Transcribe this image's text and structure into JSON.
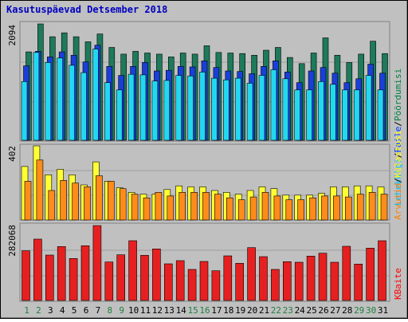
{
  "chart_data": [
    {
      "type": "bar",
      "title": "Kasutuspäevad Detsember 2018",
      "ytick": "2094",
      "ylim": [
        0,
        2094
      ],
      "legend": [
        "Pöördumisi",
        "Faile",
        "Lehekülgi"
      ],
      "categories": [
        "1",
        "2",
        "3",
        "4",
        "5",
        "6",
        "7",
        "8",
        "9",
        "10",
        "11",
        "12",
        "13",
        "14",
        "15",
        "16",
        "17",
        "18",
        "19",
        "20",
        "21",
        "22",
        "23",
        "24",
        "25",
        "26",
        "27",
        "28",
        "29",
        "30",
        "31"
      ],
      "series": [
        {
          "name": "Pöördumisi",
          "values": [
            1580,
            2080,
            1850,
            1920,
            1850,
            1760,
            1900,
            1660,
            1540,
            1590,
            1560,
            1540,
            1490,
            1560,
            1540,
            1690,
            1570,
            1560,
            1550,
            1520,
            1610,
            1660,
            1480,
            1370,
            1560,
            1830,
            1520,
            1390,
            1540,
            1770,
            1550
          ]
        },
        {
          "name": "Faile",
          "values": [
            1330,
            1590,
            1490,
            1580,
            1520,
            1400,
            1700,
            1320,
            1160,
            1320,
            1390,
            1240,
            1250,
            1320,
            1310,
            1420,
            1300,
            1240,
            1230,
            1190,
            1320,
            1420,
            1220,
            1030,
            1240,
            1300,
            1200,
            1030,
            1100,
            1360,
            1200
          ]
        },
        {
          "name": "Lehekülgi",
          "values": [
            1050,
            1570,
            1390,
            1470,
            1340,
            1210,
            1630,
            1030,
            900,
            1180,
            1170,
            1060,
            1070,
            1160,
            1150,
            1220,
            1110,
            1080,
            1110,
            1020,
            1160,
            1260,
            1100,
            900,
            900,
            1050,
            1000,
            900,
            900,
            1160,
            900
          ]
        }
      ]
    },
    {
      "type": "bar",
      "ytick": "402",
      "ylim": [
        0,
        402
      ],
      "legend": [
        "Külastusi",
        "Arvutid"
      ],
      "series": [
        {
          "name": "Külastusi",
          "values": [
            290,
            402,
            245,
            275,
            245,
            190,
            315,
            210,
            175,
            150,
            140,
            140,
            165,
            185,
            180,
            180,
            160,
            150,
            140,
            160,
            180,
            170,
            135,
            135,
            135,
            145,
            180,
            180,
            185,
            185,
            180
          ]
        },
        {
          "name": "Arvutid",
          "values": [
            210,
            325,
            160,
            215,
            200,
            180,
            240,
            210,
            170,
            140,
            120,
            150,
            130,
            150,
            150,
            150,
            140,
            120,
            110,
            125,
            150,
            130,
            110,
            110,
            120,
            130,
            130,
            125,
            140,
            150,
            140
          ]
        }
      ]
    },
    {
      "type": "bar",
      "ytick": "282068",
      "ylim": [
        0,
        282068
      ],
      "legend": [
        "KBaite"
      ],
      "series": [
        {
          "name": "KBaite",
          "values": [
            187000,
            231000,
            171000,
            203000,
            158000,
            206000,
            282068,
            145000,
            172000,
            225000,
            170000,
            194000,
            138000,
            150000,
            117000,
            147000,
            112000,
            168000,
            140000,
            199000,
            165000,
            117000,
            146000,
            144000,
            167000,
            178000,
            144000,
            204000,
            137000,
            197000,
            225000
          ]
        }
      ]
    }
  ],
  "colors": {
    "page_background": "#c0c0c0",
    "panel_background": "#c0c0c0",
    "title": "#0000c0",
    "ytick": "#000000",
    "xtick_weekday": "#000000",
    "xtick_weekend": "#208040",
    "legend_hits": "#008040",
    "legend_files": "#0040ff",
    "legend_pages": "#00c0ff",
    "legend_visits": "#ffff00",
    "legend_sites": "#ff8000",
    "legend_kbytes": "#ff0000",
    "bar_hits": "#1d7a5a",
    "bar_files": "#1a3fd9",
    "bar_pages": "#22d8f0",
    "bar_visits": "#ffff33",
    "bar_sites": "#ff8c1a",
    "bar_kbytes": "#e62020"
  }
}
